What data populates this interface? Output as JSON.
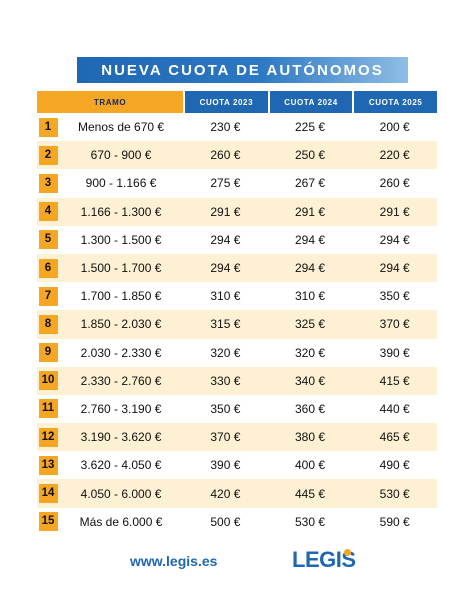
{
  "title": "NUEVA CUOTA DE AUTÓNOMOS",
  "table": {
    "headers": {
      "tramo": "TRAMO",
      "y2023": "CUOTA 2023",
      "y2024": "CUOTA 2024",
      "y2025": "CUOTA 2025"
    },
    "rows": [
      {
        "num": "1",
        "tramo": "Menos de 670 €",
        "y2023": "230 €",
        "y2024": "225 €",
        "y2025": "200 €"
      },
      {
        "num": "2",
        "tramo": "670  -  900 €",
        "y2023": "260 €",
        "y2024": "250 €",
        "y2025": "220 €"
      },
      {
        "num": "3",
        "tramo": "900 - 1.166 €",
        "y2023": "275 €",
        "y2024": "267 €",
        "y2025": "260 €"
      },
      {
        "num": "4",
        "tramo": "1.166 - 1.300 €",
        "y2023": "291 €",
        "y2024": "291 €",
        "y2025": "291 €"
      },
      {
        "num": "5",
        "tramo": "1.300 - 1.500 €",
        "y2023": "294 €",
        "y2024": "294 €",
        "y2025": "294 €"
      },
      {
        "num": "6",
        "tramo": "1.500 - 1.700 €",
        "y2023": "294 €",
        "y2024": "294 €",
        "y2025": "294 €"
      },
      {
        "num": "7",
        "tramo": "1.700 - 1.850 €",
        "y2023": "310 €",
        "y2024": "310 €",
        "y2025": "350 €"
      },
      {
        "num": "8",
        "tramo": "1.850 - 2.030 €",
        "y2023": "315 €",
        "y2024": "325 €",
        "y2025": "370 €"
      },
      {
        "num": "9",
        "tramo": "2.030 - 2.330 €",
        "y2023": "320 €",
        "y2024": "320 €",
        "y2025": "390 €"
      },
      {
        "num": "10",
        "tramo": "2.330 - 2.760 €",
        "y2023": "330 €",
        "y2024": "340 €",
        "y2025": "415 €"
      },
      {
        "num": "11",
        "tramo": "2.760 - 3.190 €",
        "y2023": "350 €",
        "y2024": "360 €",
        "y2025": "440 €"
      },
      {
        "num": "12",
        "tramo": "3.190 - 3.620 €",
        "y2023": "370 €",
        "y2024": "380 €",
        "y2025": "465 €"
      },
      {
        "num": "13",
        "tramo": "3.620 - 4.050 €",
        "y2023": "390 €",
        "y2024": "400 €",
        "y2025": "490 €"
      },
      {
        "num": "14",
        "tramo": "4.050 - 6.000 €",
        "y2023": "420 €",
        "y2024": "445 €",
        "y2025": "530 €"
      },
      {
        "num": "15",
        "tramo": "Más de 6.000 €",
        "y2023": "500 €",
        "y2024": "530 €",
        "y2025": "590 €"
      }
    ]
  },
  "footer": {
    "url": "www.legis.es",
    "logo": {
      "part1": "LE",
      "part2": "G",
      "part3": "IS"
    }
  },
  "colors": {
    "blue": "#1f67b3",
    "orange": "#f5a623",
    "row_alt": "#fdf0d3"
  }
}
